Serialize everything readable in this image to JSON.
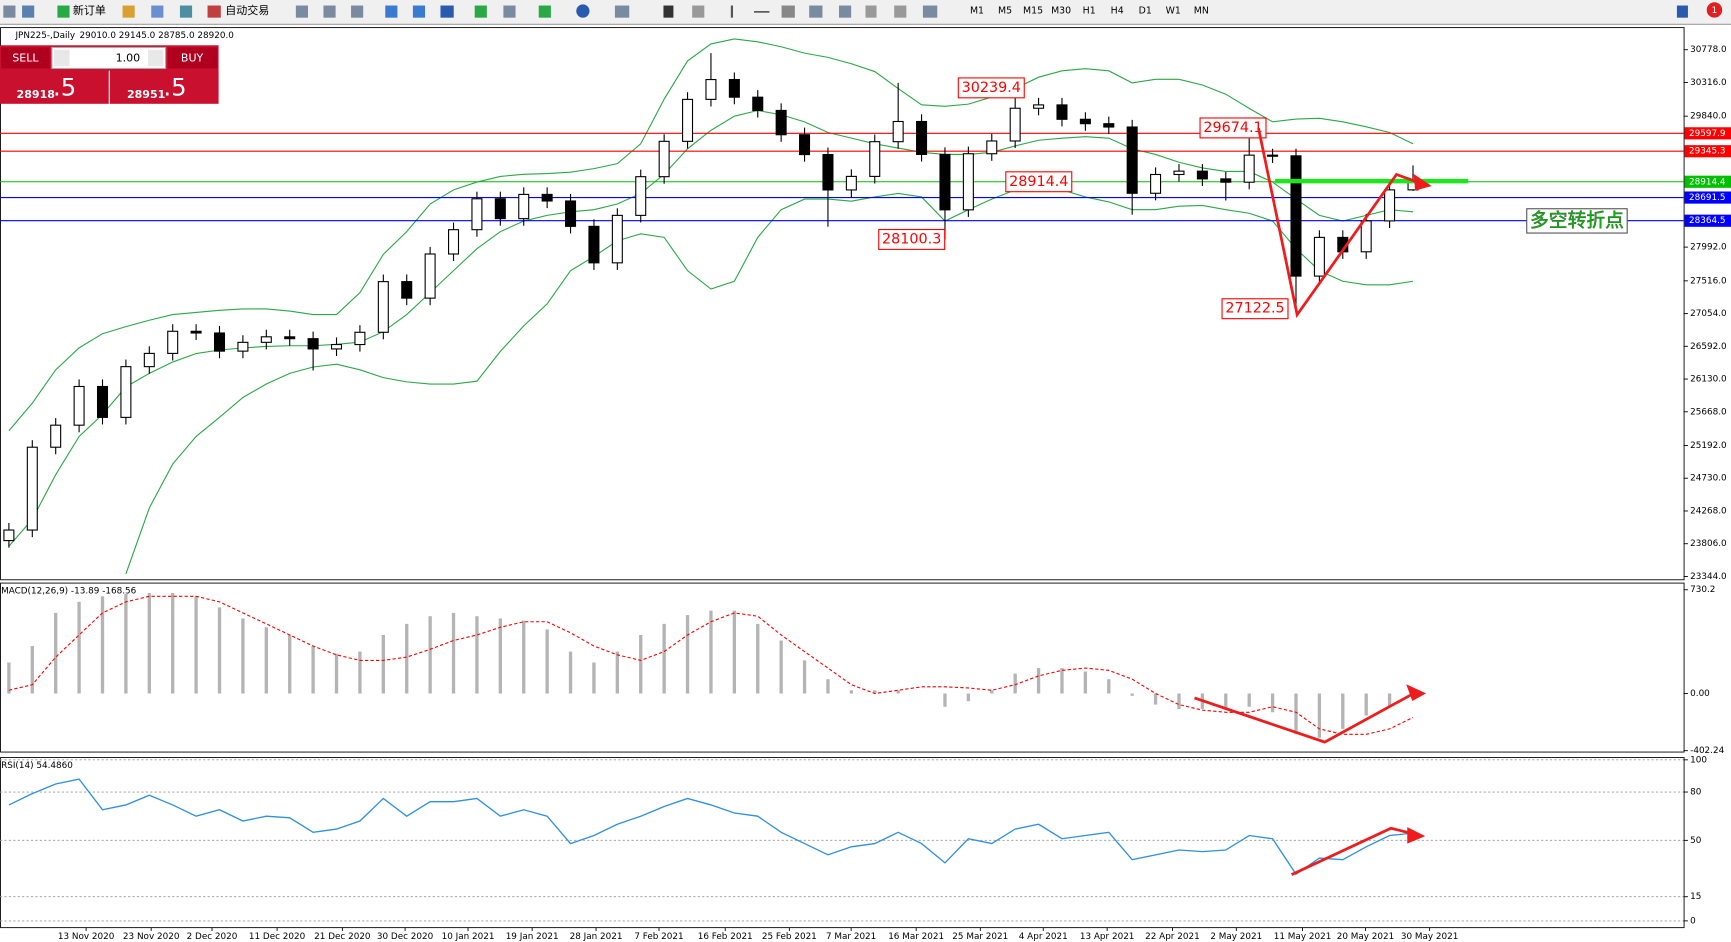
{
  "toolbar": {
    "new_order": "新订单",
    "auto_trading": "自动交易",
    "timeframes": [
      "M1",
      "M5",
      "M15",
      "M30",
      "H1",
      "H4",
      "D1",
      "W1",
      "MN"
    ],
    "notifications": "1"
  },
  "trade_panel": {
    "sell": "SELL",
    "lots": "1.00",
    "buy": "BUY",
    "bid": "28918",
    "bid_tail": ".5",
    "ask": "28951",
    "ask_tail": ".5"
  },
  "chart_data": [
    {
      "type": "candlestick",
      "title": "JPN225-,Daily",
      "info": "29010.0 29145.0 28785.0 28920.0",
      "open": [
        23850,
        23999,
        25168,
        25479,
        26025,
        25589,
        26305,
        26492,
        26804,
        26780,
        26524,
        26648,
        26726,
        26700,
        26555,
        26617,
        26790,
        27505,
        27272,
        27895,
        28238,
        28674,
        28394,
        28736,
        28643,
        28285,
        27770,
        28440,
        28986,
        29485,
        30077,
        30357,
        30108,
        29921,
        29578,
        29298,
        28799,
        28990,
        29480,
        29765,
        29300,
        28518,
        29310,
        29490,
        29952,
        29999,
        29796,
        29734,
        29687,
        28752,
        29017,
        29064,
        28955,
        28908,
        29290,
        29280,
        27583,
        28129,
        27926,
        28362,
        28800
      ],
      "high": [
        24099,
        25268,
        25579,
        26125,
        26125,
        26405,
        26592,
        26904,
        26904,
        26880,
        26748,
        26826,
        26826,
        26800,
        26717,
        26890,
        27605,
        27605,
        27995,
        28338,
        28774,
        28774,
        28836,
        28836,
        28743,
        28385,
        28540,
        29086,
        29585,
        30177,
        30730,
        30457,
        30208,
        30021,
        29678,
        29398,
        29090,
        29580,
        30310,
        29865,
        29400,
        29410,
        29590,
        30239.4,
        30099,
        30099,
        29896,
        29834,
        29787,
        29117,
        29164,
        29164,
        29055,
        29674.1,
        29380,
        29380,
        28229,
        28229,
        28462,
        28900,
        29145
      ],
      "low": [
        23750,
        23899,
        25068,
        25379,
        25489,
        25489,
        26205,
        26392,
        26680,
        26424,
        26424,
        26548,
        26600,
        26250,
        26455,
        26517,
        26690,
        27172,
        27172,
        27795,
        28138,
        28294,
        28294,
        28543,
        28185,
        27670,
        27670,
        28340,
        28886,
        29385,
        29977,
        30008,
        29821,
        29478,
        29198,
        28280,
        28699,
        28890,
        29380,
        29200,
        28100.3,
        28418,
        29210,
        29390,
        29852,
        29696,
        29634,
        29587,
        28450,
        28652,
        28917,
        28855,
        28650,
        28808,
        29180,
        27122.5,
        27483,
        27826,
        27826,
        28262,
        28785
      ],
      "close": [
        23999,
        25168,
        25479,
        26025,
        25589,
        26305,
        26492,
        26804,
        26780,
        26524,
        26648,
        26726,
        26700,
        26555,
        26617,
        26790,
        27505,
        27272,
        27895,
        28238,
        28674,
        28394,
        28736,
        28643,
        28285,
        27770,
        28440,
        28986,
        29485,
        30077,
        30357,
        30108,
        29921,
        29578,
        29298,
        28799,
        28990,
        29480,
        29765,
        29300,
        28518,
        29310,
        29490,
        29952,
        29999,
        29796,
        29734,
        29687,
        28752,
        29017,
        29064,
        28955,
        28908,
        29290,
        29280,
        27583,
        28129,
        27926,
        28362,
        28800,
        28920
      ],
      "up_color": "#ffffff",
      "down_color": "#000000",
      "bands": [
        {
          "color": "#2aa845",
          "values": [
            25400,
            25790,
            26260,
            26570,
            26770,
            26870,
            26960,
            27040,
            27070,
            27100,
            27120,
            27120,
            27090,
            27040,
            27040,
            27350,
            27890,
            28210,
            28600,
            28800,
            28910,
            28990,
            29020,
            29030,
            29050,
            29100,
            29170,
            29450,
            30080,
            30620,
            30860,
            30930,
            30890,
            30820,
            30730,
            30670,
            30580,
            30470,
            30230,
            30000,
            29980,
            30010,
            30110,
            30230,
            30390,
            30480,
            30510,
            30480,
            30310,
            30360,
            30360,
            30280,
            30150,
            29950,
            29760,
            29800,
            29810,
            29760,
            29690,
            29610,
            29450
          ]
        },
        {
          "color": "#2aa845",
          "values": [
            23770,
            24150,
            24780,
            25320,
            25630,
            26020,
            26210,
            26370,
            26490,
            26540,
            26570,
            26590,
            26600,
            26600,
            26620,
            26650,
            26800,
            27040,
            27350,
            27660,
            27970,
            28210,
            28360,
            28440,
            28490,
            28520,
            28600,
            28750,
            29020,
            29380,
            29640,
            29840,
            29920,
            29860,
            29760,
            29610,
            29530,
            29450,
            29390,
            29330,
            29300,
            29300,
            29330,
            29420,
            29500,
            29530,
            29550,
            29530,
            29380,
            29300,
            29190,
            29110,
            29060,
            29060,
            28910,
            28670,
            28440,
            28360,
            28440,
            28520,
            28490
          ]
        },
        {
          "color": "#2aa845",
          "values": [
            null,
            null,
            null,
            null,
            null,
            23380,
            24310,
            24930,
            25320,
            25590,
            25870,
            26060,
            26210,
            26300,
            26340,
            26260,
            26150,
            26090,
            26060,
            26060,
            26100,
            26520,
            26880,
            27190,
            27660,
            27860,
            28080,
            28180,
            28130,
            27660,
            27400,
            27510,
            28130,
            28520,
            28670,
            28670,
            28640,
            28700,
            28750,
            28700,
            28360,
            28520,
            28670,
            28800,
            28830,
            28800,
            28700,
            28630,
            28520,
            28520,
            28570,
            28580,
            28520,
            28470,
            28360,
            27970,
            27660,
            27510,
            27460,
            27460,
            27510
          ]
        }
      ],
      "levels": [
        {
          "value": 29597.9,
          "color": "#ff0000"
        },
        {
          "value": 29345.3,
          "color": "#ff0000"
        },
        {
          "value": 28914.4,
          "color": "#00c000"
        },
        {
          "value": 28691.5,
          "color": "#0000ff"
        },
        {
          "value": 28364.5,
          "color": "#0000ff"
        }
      ],
      "annotations": [
        {
          "value": 30239.4,
          "x": 40.57,
          "color": "#ff0000"
        },
        {
          "value": 29674.1,
          "x": 50.9,
          "color": "#ff0000"
        },
        {
          "value": 28914.4,
          "x": 42.6,
          "color": "#ff0000"
        },
        {
          "value": 28100.3,
          "x": 37.17,
          "color": "#ff0000"
        },
        {
          "value": 27122.5,
          "x": 51.84,
          "color": "#ff0000"
        },
        {
          "text": "多空转折点",
          "y": 28362,
          "x": 64.86,
          "color": "#00c000"
        }
      ],
      "ylim": [
        23297,
        31090
      ],
      "yticks": [
        {
          "value": 30778,
          "label": "30778.0"
        },
        {
          "value": 30316,
          "label": "30316.0"
        },
        {
          "value": 29840,
          "label": "29840.0"
        },
        {
          "value": 27992,
          "label": "27992.0"
        },
        {
          "value": 27516,
          "label": "27516.0"
        },
        {
          "value": 27054,
          "label": "27054.0"
        },
        {
          "value": 26592,
          "label": "26592.0"
        },
        {
          "value": 26130,
          "label": "26130.0"
        },
        {
          "value": 25668,
          "label": "25668.0"
        },
        {
          "value": 25192,
          "label": "25192.0"
        },
        {
          "value": 24730,
          "label": "24730.0"
        },
        {
          "value": 24268,
          "label": "24268.0"
        },
        {
          "value": 23806,
          "label": "23806.0"
        },
        {
          "value": 23344,
          "label": "23344.0"
        }
      ],
      "xlim": [
        -0.38,
        71.56
      ],
      "xticks": [
        {
          "value": 3.3,
          "label": "13 Nov 2020"
        },
        {
          "value": 6.08,
          "label": "23 Nov 2020"
        },
        {
          "value": 8.68,
          "label": "2 Dec 2020"
        },
        {
          "value": 11.46,
          "label": "11 Dec 2020"
        },
        {
          "value": 14.25,
          "label": "21 Dec 2020"
        },
        {
          "value": 16.93,
          "label": "30 Dec 2020"
        },
        {
          "value": 19.62,
          "label": "10 Jan 2021"
        },
        {
          "value": 22.36,
          "label": "19 Jan 2021"
        },
        {
          "value": 25.09,
          "label": "28 Jan 2021"
        },
        {
          "value": 27.78,
          "label": "7 Feb 2021"
        },
        {
          "value": 30.61,
          "label": "16 Feb 2021"
        },
        {
          "value": 33.35,
          "label": "25 Feb 2021"
        },
        {
          "value": 35.99,
          "label": "7 Mar 2021"
        },
        {
          "value": 38.77,
          "label": "16 Mar 2021"
        },
        {
          "value": 41.51,
          "label": "25 Mar 2021"
        },
        {
          "value": 44.2,
          "label": "4 Apr 2021"
        },
        {
          "value": 46.93,
          "label": "13 Apr 2021"
        },
        {
          "value": 49.72,
          "label": "22 Apr 2021"
        },
        {
          "value": 52.45,
          "label": "2 May 2021"
        },
        {
          "value": 55.28,
          "label": "11 May 2021"
        },
        {
          "value": 57.97,
          "label": "20 May 2021"
        },
        {
          "value": 60.71,
          "label": "30 May 2021"
        }
      ],
      "grid": false
    },
    {
      "type": "macd",
      "title": "MACD(12,26,9) -13.89 -168.56",
      "histogram": {
        "color": "#b4b4b4",
        "values": [
          218,
          334,
          567,
          645,
          684,
          700,
          707,
          707,
          684,
          606,
          528,
          466,
          412,
          334,
          280,
          295,
          412,
          490,
          544,
          567,
          544,
          528,
          513,
          451,
          295,
          218,
          295,
          412,
          490,
          552,
          583,
          583,
          490,
          373,
          233,
          101,
          23,
          23,
          23,
          0,
          -93,
          -54,
          23,
          140,
          179,
          179,
          155,
          101,
          -16,
          -78,
          -109,
          -109,
          -109,
          -93,
          -132,
          -287,
          -311,
          -249,
          -155,
          -93,
          -13.89
        ]
      },
      "signal": {
        "color": "#ff0000",
        "values": [
          23,
          62,
          256,
          412,
          567,
          645,
          684,
          684,
          684,
          645,
          567,
          490,
          412,
          334,
          272,
          233,
          233,
          256,
          311,
          373,
          412,
          466,
          505,
          505,
          427,
          334,
          272,
          233,
          295,
          412,
          505,
          567,
          544,
          412,
          295,
          179,
          62,
          0,
          23,
          47,
          47,
          39,
          23,
          62,
          124,
          163,
          179,
          163,
          101,
          0,
          -78,
          -117,
          -132,
          -132,
          -93,
          -132,
          -249,
          -287,
          -287,
          -249,
          -168.56
        ]
      },
      "ylim": [
        -412,
        777
      ],
      "yticks": [
        730.2,
        {
          "value": 0,
          "label": "0.00"
        },
        -402.24
      ],
      "grid": false
    },
    {
      "type": "line",
      "title": "RSI(14) 54.4860",
      "series": [
        {
          "color": "#2f8fe0",
          "values": [
            72,
            79,
            85,
            88,
            69,
            72,
            78,
            72,
            65,
            69,
            62,
            65,
            64,
            55,
            57,
            62,
            76,
            65,
            74,
            74,
            76,
            65,
            69,
            65,
            48,
            53,
            60,
            65,
            71,
            76,
            72,
            67,
            65,
            55,
            48,
            41,
            46,
            48,
            55,
            48,
            36,
            51,
            48,
            57,
            60,
            51,
            53,
            55,
            38,
            41,
            44,
            43,
            44,
            53,
            51,
            29,
            39,
            38,
            46,
            53,
            54.486
          ]
        }
      ],
      "ylim": [
        -4.2,
        101.4
      ],
      "yticks": [
        100,
        80,
        50,
        15,
        0
      ],
      "grid": true
    }
  ]
}
